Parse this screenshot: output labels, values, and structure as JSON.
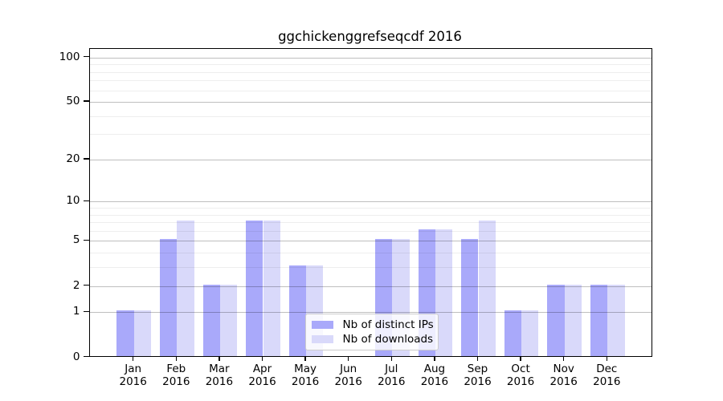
{
  "title": "ggchickenggrefseqcdf 2016",
  "chart_data": {
    "type": "bar",
    "title": "ggchickenggrefseqcdf 2016",
    "categories": [
      "Jan 2016",
      "Feb 2016",
      "Mar 2016",
      "Apr 2016",
      "May 2016",
      "Jun 2016",
      "Jul 2016",
      "Aug 2016",
      "Sep 2016",
      "Oct 2016",
      "Nov 2016",
      "Dec 2016"
    ],
    "month_labels": [
      "Jan",
      "Feb",
      "Mar",
      "Apr",
      "May",
      "Jun",
      "Jul",
      "Aug",
      "Sep",
      "Oct",
      "Nov",
      "Dec"
    ],
    "year_label": "2016",
    "series": [
      {
        "name": "Nb of distinct IPs",
        "color": "#a9a9fa",
        "values": [
          1,
          5,
          2,
          7,
          3,
          0,
          5,
          6,
          5,
          1,
          2,
          2
        ]
      },
      {
        "name": "Nb of downloads",
        "color": "#d9d9fa",
        "values": [
          1,
          7,
          2,
          7,
          3,
          0,
          5,
          6,
          7,
          1,
          2,
          2
        ]
      }
    ],
    "xlabel": "",
    "ylabel": "",
    "yscale": "log1p",
    "ylim": [
      0,
      114
    ],
    "yticks": [
      0,
      1,
      2,
      5,
      10,
      20,
      50,
      100
    ],
    "minor_gridlines": [
      3,
      4,
      6,
      7,
      8,
      9,
      30,
      40,
      60,
      70,
      80,
      90
    ],
    "grid": true,
    "legend_position": "lower-center-inside"
  },
  "colors": {
    "bar_distinct_ips": "#a9a9fa",
    "bar_downloads": "#d9d9fa",
    "major_grid": "#bfbfbf",
    "minor_grid": "#f0f0f0",
    "axis": "#000000",
    "legend_border": "#cccccc"
  }
}
